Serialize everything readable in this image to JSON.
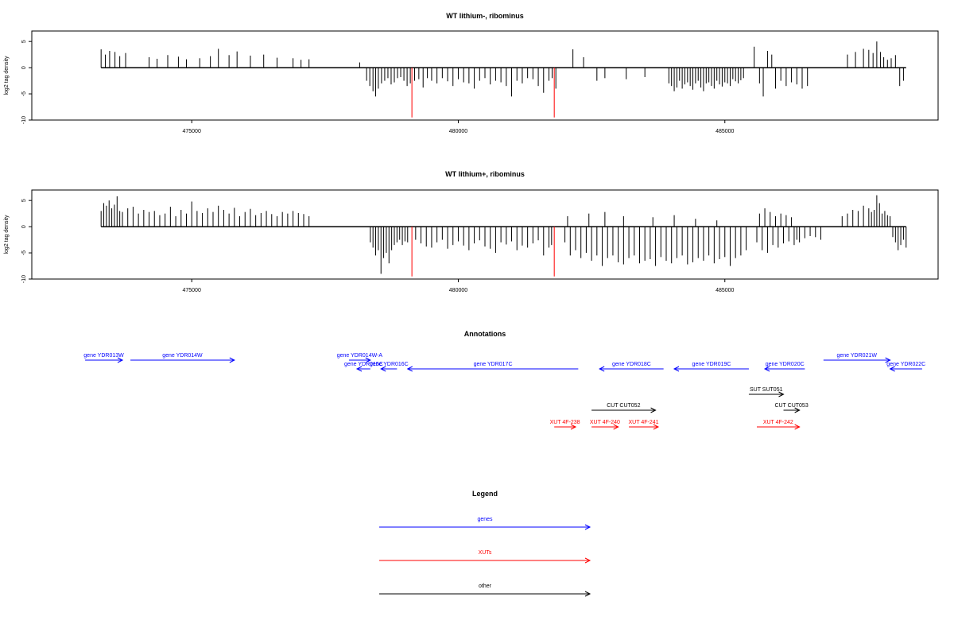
{
  "figure": {
    "colors": {
      "gene": "#0000ff",
      "xut": "#ff0000",
      "other": "#000000",
      "marker": "#ff0000",
      "frame": "#000000",
      "bars": "#000000"
    }
  },
  "chart_data": [
    {
      "type": "bar",
      "title": "WT lithium-, ribominus",
      "ylabel": "log2 tag density",
      "xlim": [
        472000,
        489000
      ],
      "ylim": [
        -10,
        7
      ],
      "x_ticks": [
        {
          "value": 475000,
          "label": "475000"
        },
        {
          "value": 480000,
          "label": "480000"
        },
        {
          "value": 485000,
          "label": "485000"
        }
      ],
      "y_ticks": [
        {
          "value": 5,
          "label": "5"
        },
        {
          "value": 0,
          "label": "0"
        },
        {
          "value": -5,
          "label": "-5"
        },
        {
          "value": -10,
          "label": "-10"
        }
      ],
      "baseline": [
        473300,
        488400
      ],
      "markers": [
        479130,
        481800
      ],
      "series": [
        {
          "x": [
            473300,
            473380,
            473460,
            473560,
            473650,
            473760,
            474200,
            474350,
            474550,
            474750,
            474900,
            475150,
            475350,
            475500,
            475700,
            475850,
            476100,
            476350,
            476600,
            476900,
            477050,
            477200
          ],
          "values": [
            3.5,
            2.5,
            3.2,
            3.0,
            2.2,
            2.8,
            2.0,
            1.7,
            2.4,
            2.1,
            1.6,
            1.8,
            2.2,
            3.6,
            2.4,
            3.1,
            2.3,
            2.5,
            1.9,
            1.8,
            1.5,
            1.6
          ]
        },
        {
          "x": [
            478280,
            478340,
            478400,
            478450,
            478500,
            478560,
            478620,
            478680,
            478740,
            478800,
            478860,
            478920,
            478980,
            479040,
            479100,
            479180,
            479260,
            479340,
            479420,
            479500,
            479600,
            479700,
            479800,
            479900,
            480000,
            480100,
            480200,
            480300,
            480400,
            480500,
            480600,
            480700,
            480800,
            480900,
            481000,
            481100,
            481200,
            481300,
            481400,
            481500,
            481600,
            481700,
            481760,
            481830
          ],
          "values": [
            -2.5,
            -3.5,
            -4.5,
            -5.5,
            -4.0,
            -3.0,
            -2.5,
            -2.0,
            -3.2,
            -2.8,
            -2.0,
            -1.8,
            -2.5,
            -3.5,
            -3.0,
            -2.5,
            -2.2,
            -3.8,
            -2.0,
            -2.5,
            -3.0,
            -2.0,
            -2.6,
            -3.5,
            -2.2,
            -2.8,
            -3.0,
            -4.0,
            -2.5,
            -2.0,
            -3.2,
            -2.5,
            -2.8,
            -3.5,
            -5.5,
            -2.5,
            -3.0,
            -2.0,
            -2.2,
            -3.5,
            -4.8,
            -2.5,
            -2.0,
            -4.0
          ]
        },
        {
          "x": [
            478150,
            482150,
            482350,
            482600,
            482750,
            483150,
            483500
          ],
          "values": [
            1.0,
            3.5,
            2.0,
            -2.5,
            -2.0,
            -2.2,
            -1.8
          ]
        },
        {
          "x": [
            483950,
            484000,
            484050,
            484100,
            484150,
            484200,
            484250,
            484300,
            484350,
            484400,
            484450,
            484500,
            484550,
            484600,
            484650,
            484700,
            484750,
            484800,
            484850,
            484900,
            484950,
            485000,
            485050,
            485100,
            485150,
            485200,
            485250,
            485300,
            485350
          ],
          "values": [
            -3.0,
            -3.5,
            -4.5,
            -3.8,
            -2.5,
            -4.0,
            -3.2,
            -2.8,
            -3.5,
            -4.2,
            -3.0,
            -2.5,
            -3.8,
            -4.5,
            -3.0,
            -2.8,
            -3.5,
            -4.0,
            -2.5,
            -3.2,
            -3.6,
            -2.8,
            -3.0,
            -3.5,
            -2.2,
            -2.6,
            -3.0,
            -2.4,
            -2.0
          ]
        },
        {
          "x": [
            485550,
            485650,
            485720,
            485800,
            485880,
            485950,
            486050,
            486150,
            486250,
            486350,
            486450,
            486550
          ],
          "values": [
            4.0,
            -3.0,
            -5.5,
            3.2,
            2.5,
            -4.0,
            -2.5,
            -3.5,
            -2.8,
            -3.2,
            -4.0,
            -3.5
          ]
        },
        {
          "x": [
            487300,
            487450,
            487600,
            487700,
            487780,
            487850,
            487920,
            487980,
            488050,
            488120,
            488200,
            488280,
            488350
          ],
          "values": [
            2.5,
            3.0,
            3.6,
            3.4,
            2.8,
            5.0,
            3.0,
            2.0,
            1.5,
            1.8,
            2.4,
            -3.5,
            -2.5
          ]
        }
      ]
    },
    {
      "type": "bar",
      "title": "WT lithium+, ribominus",
      "ylabel": "log2 tag density",
      "xlim": [
        472000,
        489000
      ],
      "ylim": [
        -10,
        7
      ],
      "x_ticks": [
        {
          "value": 475000,
          "label": "475000"
        },
        {
          "value": 480000,
          "label": "480000"
        },
        {
          "value": 485000,
          "label": "485000"
        }
      ],
      "y_ticks": [
        {
          "value": 5,
          "label": "5"
        },
        {
          "value": 0,
          "label": "0"
        },
        {
          "value": -5,
          "label": "-5"
        },
        {
          "value": -10,
          "label": "-10"
        }
      ],
      "baseline": [
        473300,
        488400
      ],
      "markers": [
        479130,
        481800
      ],
      "series": [
        {
          "x": [
            473300,
            473350,
            473400,
            473450,
            473500,
            473550,
            473600,
            473650,
            473700,
            473800,
            473900,
            474000,
            474100,
            474200,
            474300,
            474400,
            474500,
            474600,
            474700,
            474800,
            474900,
            475000,
            475100,
            475200,
            475300,
            475400,
            475500,
            475600,
            475700,
            475800,
            475900,
            476000,
            476100,
            476200,
            476300,
            476400,
            476500,
            476600,
            476700,
            476800,
            476900,
            477000,
            477100,
            477200
          ],
          "values": [
            3.0,
            4.5,
            4.0,
            5.0,
            3.5,
            4.2,
            5.8,
            3.0,
            2.8,
            3.5,
            3.8,
            2.5,
            3.2,
            2.8,
            3.0,
            2.2,
            2.5,
            3.8,
            2.0,
            3.2,
            2.5,
            4.8,
            3.0,
            2.6,
            3.5,
            2.8,
            4.0,
            3.2,
            2.5,
            3.6,
            2.0,
            2.8,
            3.4,
            2.2,
            2.6,
            3.0,
            2.4,
            2.0,
            2.8,
            2.5,
            3.0,
            2.6,
            2.4,
            2.0
          ]
        },
        {
          "x": [
            478350,
            478400,
            478450,
            478500,
            478550,
            478600,
            478650,
            478700,
            478750,
            478800,
            478850,
            478900,
            478950,
            479000,
            479050,
            479200,
            479300,
            479400,
            479500,
            479600,
            479700,
            479800,
            479900,
            480000,
            480100,
            480200,
            480300,
            480400,
            480500,
            480600,
            480700,
            480800,
            480900,
            481000,
            481100,
            481200,
            481300,
            481400,
            481500,
            481600,
            481700,
            481750
          ],
          "values": [
            -3.0,
            -4.0,
            -5.5,
            -4.5,
            -9.0,
            -6.0,
            -5.0,
            -7.0,
            -4.5,
            -3.5,
            -3.0,
            -2.5,
            -3.5,
            -2.8,
            -3.0,
            -2.5,
            -3.2,
            -3.8,
            -4.0,
            -3.0,
            -2.5,
            -4.2,
            -3.5,
            -2.8,
            -3.6,
            -4.5,
            -3.2,
            -2.6,
            -3.8,
            -4.2,
            -5.0,
            -3.0,
            -3.4,
            -2.8,
            -4.5,
            -3.6,
            -4.0,
            -3.2,
            -2.6,
            -5.5,
            -4.0,
            -3.5
          ]
        },
        {
          "x": [
            482000,
            482100,
            482200,
            482300,
            482400,
            482500,
            482600,
            482700,
            482800,
            482900,
            483000,
            483100,
            483200,
            483300,
            483400,
            483500,
            483600,
            483700,
            483800,
            483900,
            484000,
            484100,
            484200,
            484300,
            484400,
            484500,
            484600,
            484700,
            484800,
            484900,
            485000,
            485100,
            485200,
            485300,
            485400
          ],
          "values": [
            -3.0,
            -5.5,
            -4.5,
            -6.0,
            -5.0,
            -6.5,
            -5.5,
            -7.5,
            -6.0,
            -5.5,
            -6.8,
            -7.2,
            -6.0,
            -5.5,
            -7.0,
            -6.5,
            -6.2,
            -7.5,
            -5.8,
            -6.5,
            -7.0,
            -6.0,
            -5.5,
            -7.2,
            -6.8,
            -6.0,
            -6.5,
            -5.5,
            -7.0,
            -6.2,
            -5.8,
            -7.5,
            -6.0,
            -5.5,
            -4.5
          ]
        },
        {
          "x": [
            482050,
            482450,
            482750,
            483100,
            483650,
            484050,
            484450,
            484850
          ],
          "values": [
            2.0,
            2.5,
            2.8,
            2.0,
            1.8,
            2.2,
            1.5,
            1.2
          ]
        },
        {
          "x": [
            485600,
            485650,
            485700,
            485750,
            485800,
            485850,
            485900,
            485950,
            486000,
            486050,
            486100,
            486150,
            486200,
            486250,
            486300,
            486350,
            486400,
            486500,
            486600,
            486700,
            486800
          ],
          "values": [
            -3.0,
            2.5,
            -4.5,
            3.5,
            -5.0,
            2.8,
            -3.5,
            2.0,
            -4.0,
            2.5,
            -3.2,
            2.2,
            -2.8,
            1.8,
            -3.5,
            -2.5,
            -3.0,
            -2.2,
            -1.8,
            -2.0,
            -2.5
          ]
        },
        {
          "x": [
            487200,
            487300,
            487400,
            487500,
            487600,
            487700,
            487750,
            487800,
            487850,
            487900,
            487950,
            488000,
            488050,
            488100,
            488150,
            488200,
            488250,
            488300,
            488350,
            488400
          ],
          "values": [
            2.0,
            2.5,
            3.2,
            3.0,
            4.0,
            3.5,
            2.8,
            3.2,
            6.0,
            4.5,
            2.5,
            3.0,
            2.2,
            2.0,
            -2.0,
            -3.0,
            -4.5,
            -3.5,
            -2.5,
            -4.0
          ]
        }
      ]
    }
  ],
  "annotations": {
    "title": "Annotations",
    "items": [
      {
        "label": "gene YDR013W",
        "start": 473000,
        "end": 473700,
        "strand": "+",
        "track": 0,
        "type": "gene"
      },
      {
        "label": "gene YDR014W",
        "start": 473850,
        "end": 475800,
        "strand": "+",
        "track": 0,
        "type": "gene"
      },
      {
        "label": "gene YDR014W-A",
        "start": 477950,
        "end": 478350,
        "strand": "+",
        "track": 0,
        "type": "gene"
      },
      {
        "label": "gene YDR015C",
        "start": 478100,
        "end": 478350,
        "strand": "-",
        "track": 1,
        "type": "gene"
      },
      {
        "label": "gene YDR016C",
        "start": 478550,
        "end": 478850,
        "strand": "-",
        "track": 1,
        "type": "gene"
      },
      {
        "label": "gene YDR017C",
        "start": 479050,
        "end": 482250,
        "strand": "-",
        "track": 1,
        "type": "gene"
      },
      {
        "label": "gene YDR018C",
        "start": 482650,
        "end": 483850,
        "strand": "-",
        "track": 1,
        "type": "gene"
      },
      {
        "label": "gene YDR019C",
        "start": 484050,
        "end": 485450,
        "strand": "-",
        "track": 1,
        "type": "gene"
      },
      {
        "label": "gene YDR020C",
        "start": 485750,
        "end": 486500,
        "strand": "-",
        "track": 1,
        "type": "gene"
      },
      {
        "label": "gene YDR021W",
        "start": 486850,
        "end": 488100,
        "strand": "+",
        "track": 0,
        "type": "gene"
      },
      {
        "label": "gene YDR022C",
        "start": 488100,
        "end": 488700,
        "strand": "-",
        "track": 1,
        "type": "gene"
      },
      {
        "label": "SUT SUT051",
        "start": 485450,
        "end": 486100,
        "strand": "+",
        "track": 2,
        "type": "other"
      },
      {
        "label": "CUT CUT052",
        "start": 482500,
        "end": 483700,
        "strand": "+",
        "track": 3,
        "type": "other"
      },
      {
        "label": "CUT CUT053",
        "start": 486100,
        "end": 486400,
        "strand": "+",
        "track": 3,
        "type": "other"
      },
      {
        "label": "XUT 4F-238",
        "start": 481800,
        "end": 482200,
        "strand": "+",
        "track": 4,
        "type": "xut"
      },
      {
        "label": "XUT 4F-240",
        "start": 482500,
        "end": 483000,
        "strand": "+",
        "track": 4,
        "type": "xut"
      },
      {
        "label": "XUT 4F-241",
        "start": 483200,
        "end": 483750,
        "strand": "+",
        "track": 4,
        "type": "xut"
      },
      {
        "label": "XUT 4F-242",
        "start": 485600,
        "end": 486400,
        "strand": "+",
        "track": 4,
        "type": "xut"
      }
    ]
  },
  "legend": {
    "title": "Legend",
    "entries": [
      {
        "label": "genes",
        "type": "gene"
      },
      {
        "label": "XUTs",
        "type": "xut"
      },
      {
        "label": "other",
        "type": "other"
      }
    ]
  }
}
